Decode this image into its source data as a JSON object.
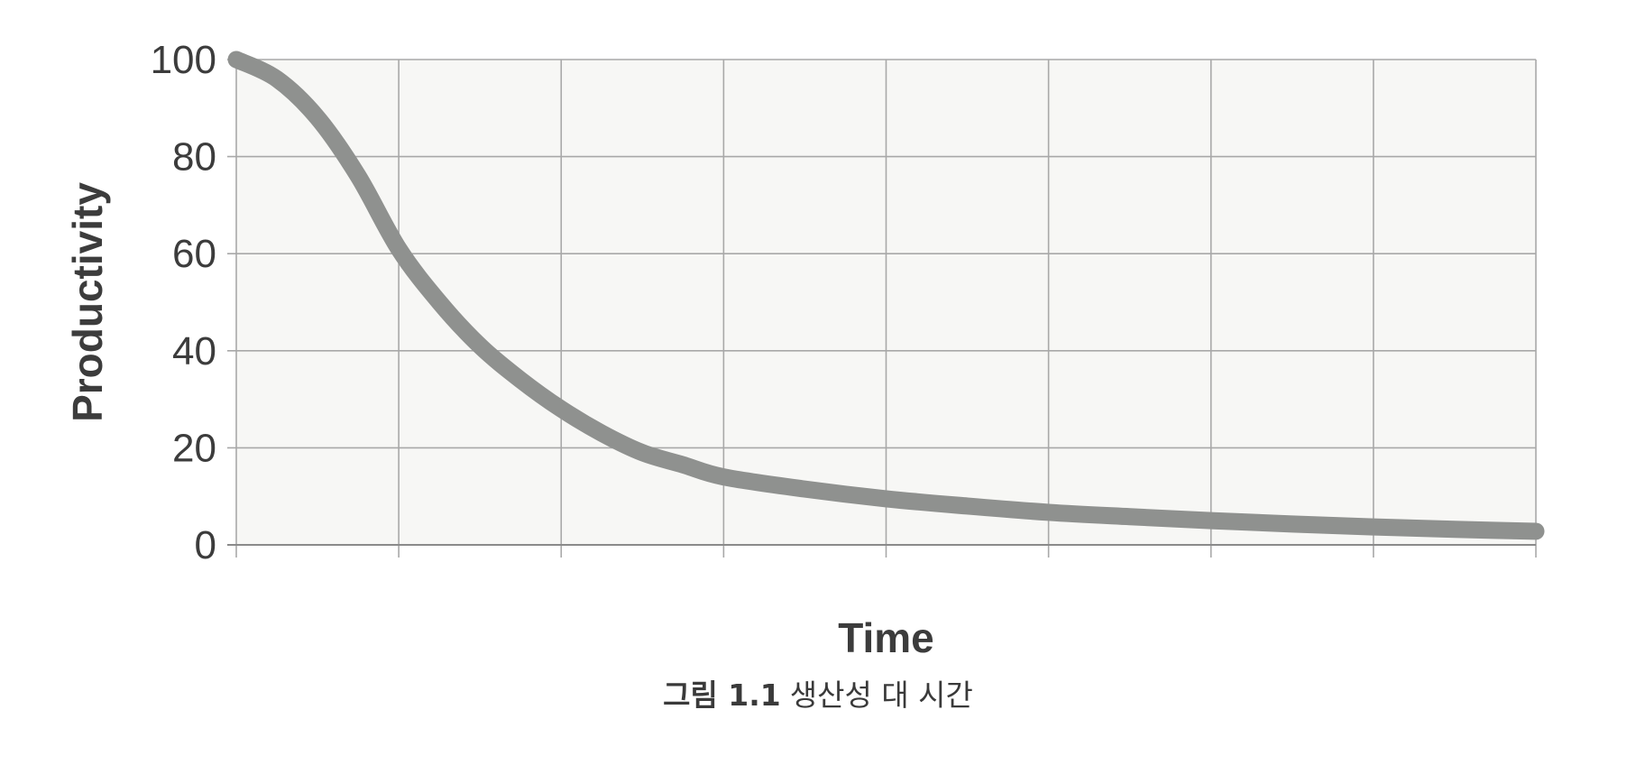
{
  "chart_data": {
    "type": "line",
    "xlabel": "Time",
    "ylabel": "Productivity",
    "ylim": [
      0,
      100
    ],
    "yticks": [
      "0",
      "20",
      "40",
      "60",
      "80",
      "100"
    ],
    "x_gridlines": 8,
    "grid": true,
    "series": [
      {
        "color": "#8f918f",
        "points": [
          [
            0,
            100
          ],
          [
            0.25,
            96
          ],
          [
            0.5,
            88
          ],
          [
            0.75,
            76
          ],
          [
            1,
            61
          ],
          [
            1.25,
            50
          ],
          [
            1.5,
            41
          ],
          [
            1.75,
            34
          ],
          [
            2,
            28
          ],
          [
            2.25,
            23
          ],
          [
            2.5,
            19
          ],
          [
            2.75,
            16.5
          ],
          [
            3,
            14
          ],
          [
            3.5,
            11.5
          ],
          [
            4,
            9.5
          ],
          [
            4.5,
            8
          ],
          [
            5,
            6.7
          ],
          [
            5.5,
            5.8
          ],
          [
            6,
            5
          ],
          [
            6.5,
            4.3
          ],
          [
            7,
            3.7
          ],
          [
            7.5,
            3.2
          ],
          [
            8,
            2.8
          ]
        ]
      }
    ]
  },
  "caption": {
    "figure_number": "그림 1.1",
    "text": "생산성 대 시간"
  },
  "colors": {
    "grid": "#a8a8a8",
    "plot_background": "#f7f7f5",
    "axis": "#8a8a8a"
  }
}
